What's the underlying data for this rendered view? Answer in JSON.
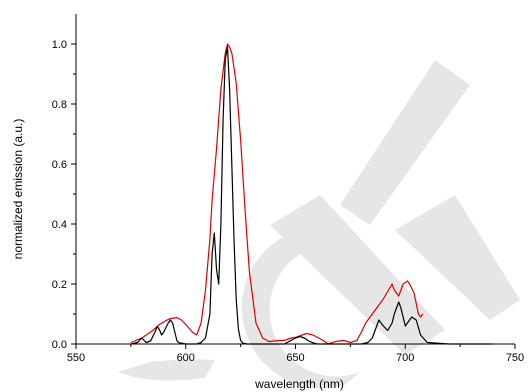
{
  "chart_data": {
    "type": "line",
    "title": "",
    "xlabel": "wavelength (nm)",
    "ylabel": "normalized emission (a.u.)",
    "xlim": [
      550,
      750
    ],
    "ylim": [
      0.0,
      1.1
    ],
    "xticks": [
      550,
      600,
      650,
      700,
      750
    ],
    "yticks": [
      0.0,
      0.2,
      0.4,
      0.6,
      0.8,
      1.0
    ],
    "xtick_labels": [
      "550",
      "600",
      "650",
      "700",
      "750"
    ],
    "ytick_labels": [
      "0.0",
      "0.2",
      "0.4",
      "0.6",
      "0.8",
      "1.0"
    ],
    "grid": false,
    "legend": "none",
    "watermark_color": "#e6e6e6",
    "series": [
      {
        "color": "#e00000",
        "x": [
          575,
          580,
          585,
          588,
          591,
          593,
          596,
          598,
          600,
          603,
          605,
          607,
          609,
          611,
          612,
          614,
          616,
          618,
          619,
          620,
          621,
          623,
          625,
          627,
          629,
          632,
          635,
          638,
          640,
          645,
          648,
          650,
          653,
          655,
          658,
          660,
          663,
          665,
          668,
          670,
          672,
          675,
          678,
          680,
          682,
          685,
          688,
          690,
          692,
          694,
          695,
          697,
          699,
          701,
          702,
          704,
          706,
          707,
          708
        ],
        "y": [
          0.005,
          0.02,
          0.045,
          0.065,
          0.078,
          0.085,
          0.088,
          0.08,
          0.065,
          0.04,
          0.03,
          0.07,
          0.18,
          0.35,
          0.48,
          0.65,
          0.85,
          0.97,
          1.0,
          0.99,
          0.97,
          0.87,
          0.68,
          0.45,
          0.24,
          0.07,
          0.02,
          0.008,
          0.01,
          0.012,
          0.02,
          0.022,
          0.03,
          0.035,
          0.03,
          0.022,
          0.01,
          0.0,
          0.008,
          0.01,
          0.012,
          0.005,
          0.012,
          0.04,
          0.07,
          0.1,
          0.13,
          0.15,
          0.175,
          0.2,
          0.18,
          0.16,
          0.2,
          0.21,
          0.2,
          0.17,
          0.1,
          0.09,
          0.1
        ]
      },
      {
        "color": "#000000",
        "x": [
          575,
          578,
          580,
          582,
          584,
          586,
          587,
          588,
          589,
          590,
          592,
          593,
          594,
          595,
          596,
          597,
          598,
          600,
          605,
          607,
          609,
          611,
          612,
          613,
          614,
          615,
          616,
          617,
          618,
          619,
          620,
          621,
          622,
          623,
          624,
          625,
          626,
          628,
          630,
          635,
          640,
          645,
          648,
          650,
          652,
          654,
          656,
          658,
          660,
          665,
          670,
          675,
          680,
          683,
          685,
          687,
          688,
          690,
          692,
          694,
          695,
          697,
          698,
          700,
          701,
          703,
          705,
          707,
          710,
          720,
          740
        ],
        "y": [
          0.0,
          0.005,
          0.02,
          0.005,
          0.01,
          0.04,
          0.058,
          0.048,
          0.03,
          0.04,
          0.07,
          0.08,
          0.07,
          0.04,
          0.01,
          0.004,
          0.003,
          0.0,
          0.0,
          0.005,
          0.02,
          0.1,
          0.3,
          0.37,
          0.25,
          0.2,
          0.4,
          0.75,
          0.95,
          0.99,
          0.85,
          0.6,
          0.35,
          0.15,
          0.05,
          0.012,
          0.003,
          0.0,
          0.0,
          0.0,
          0.0,
          0.0,
          0.012,
          0.02,
          0.025,
          0.02,
          0.01,
          0.004,
          0.0,
          0.0,
          0.0,
          0.0,
          0.0,
          0.005,
          0.02,
          0.06,
          0.08,
          0.06,
          0.045,
          0.07,
          0.1,
          0.14,
          0.12,
          0.06,
          0.07,
          0.09,
          0.08,
          0.03,
          0.005,
          0.0,
          0.0
        ]
      }
    ]
  }
}
